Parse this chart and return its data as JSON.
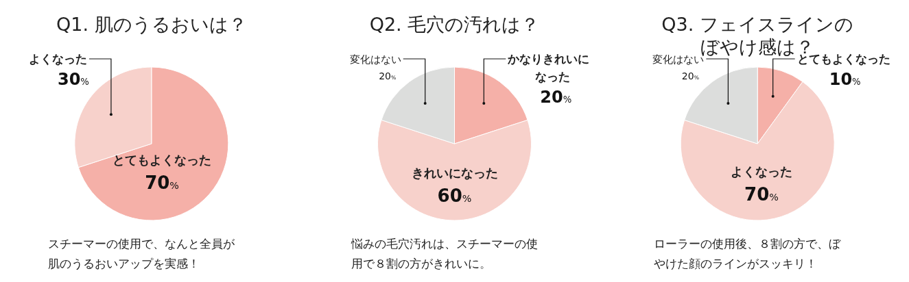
{
  "chart_data": [
    {
      "type": "pie",
      "title": "Q1. 肌のうるおいは？",
      "categories": [
        "とてもよくなった",
        "よくなった"
      ],
      "values": [
        70,
        30
      ],
      "colors": [
        "#f5b0a8",
        "#f7d1cb"
      ],
      "value_labels": [
        "70%",
        "30%"
      ],
      "annotations": [
        "スチーマーの使用で、なんと全員が肌のうるおいアップを実感！"
      ]
    },
    {
      "type": "pie",
      "title": "Q2. 毛穴の汚れは？",
      "categories": [
        "かなりきれいになった",
        "きれいになった",
        "変化はない"
      ],
      "values": [
        20,
        60,
        20
      ],
      "colors": [
        "#f5b0a8",
        "#f7d1cb",
        "#dcdddc"
      ],
      "value_labels": [
        "20%",
        "60%",
        "20%"
      ],
      "annotations": [
        "悩みの毛穴汚れは、スチーマーの使用で８割の方がきれいに。"
      ]
    },
    {
      "type": "pie",
      "title": "Q3. フェイスラインのぼやけ感は？",
      "categories": [
        "とてもよくなった",
        "よくなった",
        "変化はない"
      ],
      "values": [
        10,
        70,
        20
      ],
      "colors": [
        "#f5b0a8",
        "#f7d1cb",
        "#dcdddc"
      ],
      "value_labels": [
        "10%",
        "70%",
        "20%"
      ],
      "annotations": [
        "ローラーの使用後、８割の方で、ぼやけた顔のラインがスッキリ！"
      ]
    }
  ]
}
